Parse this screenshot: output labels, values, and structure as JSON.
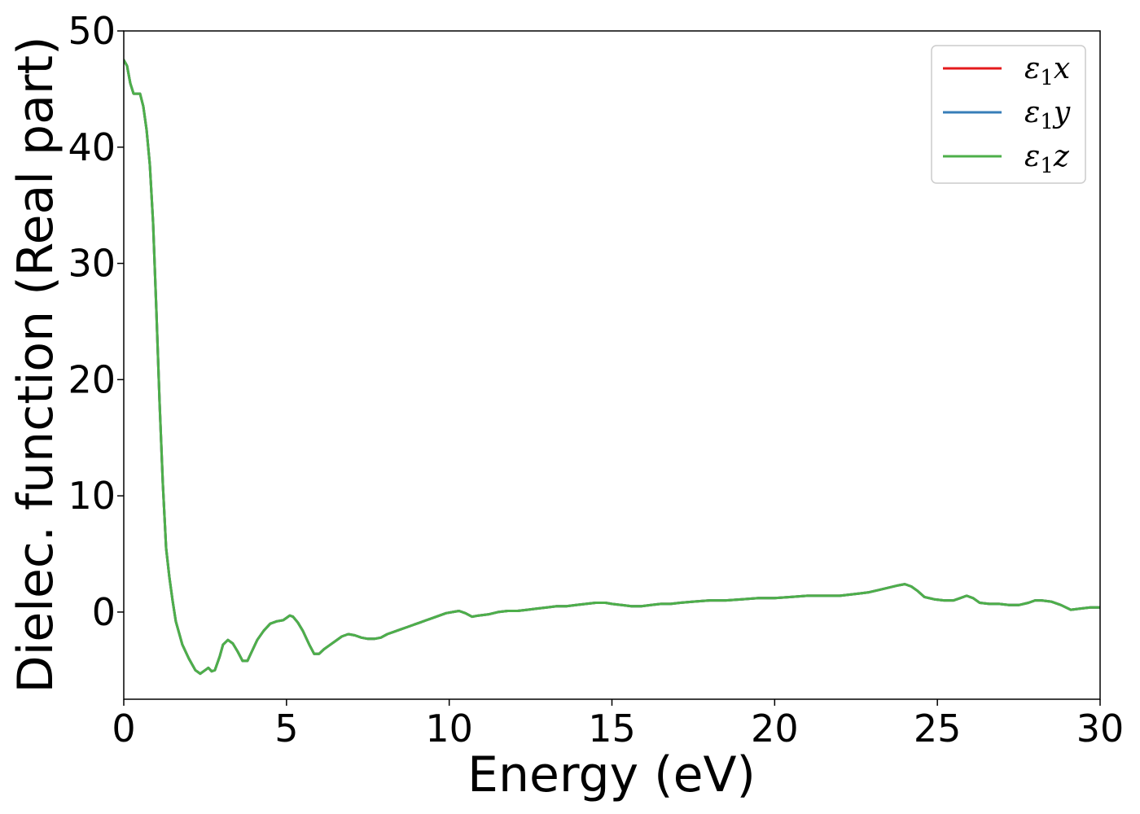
{
  "chart_data": {
    "type": "line",
    "title": "",
    "xlabel": "Energy (eV)",
    "ylabel": "Dielec. function (Real part)",
    "xlim": [
      0,
      30
    ],
    "ylim": [
      -7.5,
      50
    ],
    "xticks": [
      0,
      5,
      10,
      15,
      20,
      25,
      30
    ],
    "yticks": [
      0,
      10,
      20,
      30,
      40,
      50
    ],
    "grid": false,
    "legend_position": "top-right",
    "series": [
      {
        "name": "ε1x",
        "legend_base": "ε",
        "legend_sub": "1",
        "legend_tail": "x",
        "color": "#e41a1c",
        "x": [
          0,
          0.1,
          0.2,
          0.3,
          0.4,
          0.5,
          0.6,
          0.7,
          0.8,
          0.9,
          1.0,
          1.1,
          1.2,
          1.3,
          1.4,
          1.5,
          1.6,
          1.8,
          2.0,
          2.2,
          2.35,
          2.5,
          2.6,
          2.7,
          2.8,
          2.95,
          3.05,
          3.2,
          3.35,
          3.5,
          3.65,
          3.8,
          3.95,
          4.1,
          4.3,
          4.5,
          4.7,
          4.9,
          5.0,
          5.1,
          5.2,
          5.35,
          5.5,
          5.7,
          5.85,
          6.0,
          6.15,
          6.3,
          6.5,
          6.7,
          6.9,
          7.1,
          7.3,
          7.5,
          7.7,
          7.9,
          8.1,
          8.3,
          8.5,
          8.7,
          8.9,
          9.1,
          9.3,
          9.5,
          9.7,
          9.9,
          10.1,
          10.3,
          10.5,
          10.7,
          10.9,
          11.2,
          11.5,
          11.8,
          12.1,
          12.4,
          12.7,
          13.0,
          13.3,
          13.6,
          13.9,
          14.2,
          14.5,
          14.8,
          15.0,
          15.3,
          15.6,
          15.9,
          16.2,
          16.5,
          16.8,
          17.1,
          17.5,
          18.0,
          18.5,
          19.0,
          19.5,
          20.0,
          20.5,
          21.0,
          21.5,
          22.0,
          22.3,
          22.6,
          22.9,
          23.2,
          23.5,
          23.8,
          24.0,
          24.2,
          24.4,
          24.6,
          24.9,
          25.2,
          25.5,
          25.7,
          25.9,
          26.1,
          26.3,
          26.6,
          26.9,
          27.2,
          27.5,
          27.8,
          28.0,
          28.2,
          28.5,
          28.8,
          29.1,
          29.4,
          29.7,
          30.0
        ],
        "y": [
          47.5,
          47.0,
          45.5,
          44.6,
          44.6,
          44.6,
          43.5,
          41.5,
          38.5,
          33.5,
          26.0,
          18.0,
          11.0,
          5.5,
          3.0,
          1.0,
          -0.8,
          -2.8,
          -4.0,
          -5.0,
          -5.3,
          -5.0,
          -4.8,
          -5.1,
          -5.0,
          -3.8,
          -2.8,
          -2.4,
          -2.7,
          -3.4,
          -4.2,
          -4.2,
          -3.3,
          -2.4,
          -1.6,
          -1.0,
          -0.8,
          -0.7,
          -0.5,
          -0.3,
          -0.4,
          -0.9,
          -1.6,
          -2.8,
          -3.6,
          -3.6,
          -3.2,
          -2.9,
          -2.5,
          -2.1,
          -1.9,
          -2.0,
          -2.2,
          -2.3,
          -2.3,
          -2.2,
          -1.9,
          -1.7,
          -1.5,
          -1.3,
          -1.1,
          -0.9,
          -0.7,
          -0.5,
          -0.3,
          -0.1,
          0.0,
          0.1,
          -0.1,
          -0.4,
          -0.3,
          -0.2,
          0.0,
          0.1,
          0.1,
          0.2,
          0.3,
          0.4,
          0.5,
          0.5,
          0.6,
          0.7,
          0.8,
          0.8,
          0.7,
          0.6,
          0.5,
          0.5,
          0.6,
          0.7,
          0.7,
          0.8,
          0.9,
          1.0,
          1.0,
          1.1,
          1.2,
          1.2,
          1.3,
          1.4,
          1.4,
          1.4,
          1.5,
          1.6,
          1.7,
          1.9,
          2.1,
          2.3,
          2.4,
          2.2,
          1.8,
          1.3,
          1.1,
          1.0,
          1.0,
          1.2,
          1.4,
          1.2,
          0.8,
          0.7,
          0.7,
          0.6,
          0.6,
          0.8,
          1.0,
          1.0,
          0.9,
          0.6,
          0.2,
          0.3,
          0.4,
          0.4
        ]
      },
      {
        "name": "ε1y",
        "legend_base": "ε",
        "legend_sub": "1",
        "legend_tail": "y",
        "color": "#377eb8",
        "same_as": "ε1x"
      },
      {
        "name": "ε1z",
        "legend_base": "ε",
        "legend_sub": "1",
        "legend_tail": "z",
        "color": "#4daf4a",
        "same_as": "ε1x"
      }
    ]
  }
}
